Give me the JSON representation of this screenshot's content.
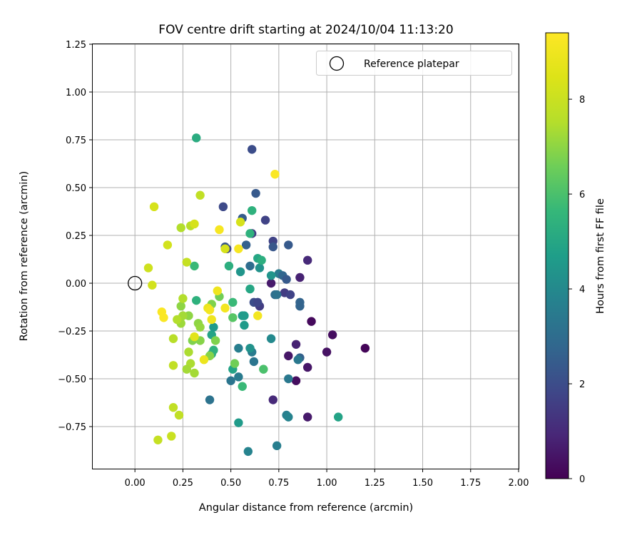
{
  "chart_data": {
    "type": "scatter",
    "title": "FOV centre drift starting at 2024/10/04 11:13:20",
    "xlabel": "Angular distance from reference (arcmin)",
    "ylabel": "Rotation from reference (arcmin)",
    "xlim": [
      -0.22,
      2.0
    ],
    "ylim": [
      -0.97,
      1.25
    ],
    "xticks": [
      "0.00",
      "0.25",
      "0.50",
      "0.75",
      "1.00",
      "1.25",
      "1.50",
      "1.75",
      "2.00"
    ],
    "yticks": [
      "−0.75",
      "−0.50",
      "−0.25",
      "0.00",
      "0.25",
      "0.50",
      "0.75",
      "1.00",
      "1.25"
    ],
    "xtick_values": [
      0,
      0.25,
      0.5,
      0.75,
      1.0,
      1.25,
      1.5,
      1.75,
      2.0
    ],
    "ytick_values": [
      -0.75,
      -0.5,
      -0.25,
      0,
      0.25,
      0.5,
      0.75,
      1.0,
      1.25
    ],
    "grid": true,
    "legend": {
      "position": "top-right",
      "entries": [
        "Reference platepar"
      ]
    },
    "reference_point": {
      "x": 0.0,
      "y": 0.0
    },
    "colorbar": {
      "label": "Hours from first FF file",
      "colormap": "viridis",
      "range": [
        0,
        9.4
      ],
      "ticks": [
        "0",
        "2",
        "4",
        "6",
        "8"
      ],
      "tick_values": [
        0,
        2,
        4,
        6,
        8
      ]
    },
    "points": [
      {
        "x": 1.2,
        "y": -0.34,
        "c": 0.1
      },
      {
        "x": 1.03,
        "y": -0.27,
        "c": 0.3
      },
      {
        "x": 1.0,
        "y": -0.36,
        "c": 0.4
      },
      {
        "x": 0.92,
        "y": -0.2,
        "c": 0.2
      },
      {
        "x": 0.9,
        "y": -0.44,
        "c": 0.5
      },
      {
        "x": 0.9,
        "y": -0.7,
        "c": 0.6
      },
      {
        "x": 0.84,
        "y": -0.51,
        "c": 0.3
      },
      {
        "x": 0.8,
        "y": -0.38,
        "c": 0.5
      },
      {
        "x": 0.86,
        "y": 0.03,
        "c": 0.8
      },
      {
        "x": 0.9,
        "y": 0.12,
        "c": 1.0
      },
      {
        "x": 0.71,
        "y": 0.0,
        "c": 0.6
      },
      {
        "x": 0.72,
        "y": -0.61,
        "c": 1.0
      },
      {
        "x": 0.84,
        "y": -0.32,
        "c": 0.8
      },
      {
        "x": 0.8,
        "y": 0.2,
        "c": 2.4
      },
      {
        "x": 0.61,
        "y": 0.7,
        "c": 2.0
      },
      {
        "x": 0.63,
        "y": 0.47,
        "c": 2.4
      },
      {
        "x": 0.46,
        "y": 0.4,
        "c": 1.9
      },
      {
        "x": 0.56,
        "y": 0.34,
        "c": 2.5
      },
      {
        "x": 0.68,
        "y": 0.33,
        "c": 1.7
      },
      {
        "x": 0.61,
        "y": 0.26,
        "c": 1.5
      },
      {
        "x": 0.72,
        "y": 0.22,
        "c": 1.7
      },
      {
        "x": 0.72,
        "y": 0.19,
        "c": 2.3
      },
      {
        "x": 0.58,
        "y": 0.2,
        "c": 2.6
      },
      {
        "x": 0.48,
        "y": 0.18,
        "c": 1.8
      },
      {
        "x": 0.47,
        "y": 0.19,
        "c": 2.3
      },
      {
        "x": 0.6,
        "y": 0.09,
        "c": 3.0
      },
      {
        "x": 0.75,
        "y": 0.05,
        "c": 3.5
      },
      {
        "x": 0.77,
        "y": 0.04,
        "c": 2.8
      },
      {
        "x": 0.79,
        "y": 0.02,
        "c": 2.4
      },
      {
        "x": 0.78,
        "y": -0.05,
        "c": 1.5
      },
      {
        "x": 0.81,
        "y": -0.06,
        "c": 1.7
      },
      {
        "x": 0.86,
        "y": -0.1,
        "c": 2.7
      },
      {
        "x": 0.86,
        "y": -0.12,
        "c": 2.7
      },
      {
        "x": 0.73,
        "y": -0.06,
        "c": 3.0
      },
      {
        "x": 0.74,
        "y": -0.06,
        "c": 3.2
      },
      {
        "x": 0.62,
        "y": -0.1,
        "c": 2.0
      },
      {
        "x": 0.65,
        "y": -0.12,
        "c": 1.5
      },
      {
        "x": 0.64,
        "y": -0.1,
        "c": 1.8
      },
      {
        "x": 0.86,
        "y": -0.39,
        "c": 2.6
      },
      {
        "x": 0.85,
        "y": -0.4,
        "c": 3.4
      },
      {
        "x": 0.8,
        "y": -0.5,
        "c": 3.4
      },
      {
        "x": 0.79,
        "y": -0.69,
        "c": 3.6
      },
      {
        "x": 0.8,
        "y": -0.7,
        "c": 3.8
      },
      {
        "x": 0.74,
        "y": -0.85,
        "c": 3.6
      },
      {
        "x": 0.59,
        "y": -0.88,
        "c": 3.8
      },
      {
        "x": 0.71,
        "y": -0.29,
        "c": 4.0
      },
      {
        "x": 0.61,
        "y": -0.36,
        "c": 3.5
      },
      {
        "x": 0.62,
        "y": -0.41,
        "c": 3.3
      },
      {
        "x": 0.6,
        "y": -0.34,
        "c": 4.3
      },
      {
        "x": 0.54,
        "y": -0.34,
        "c": 3.6
      },
      {
        "x": 0.54,
        "y": -0.49,
        "c": 3.5
      },
      {
        "x": 0.5,
        "y": -0.51,
        "c": 3.3
      },
      {
        "x": 0.39,
        "y": -0.61,
        "c": 3.2
      },
      {
        "x": 0.54,
        "y": -0.73,
        "c": 4.6
      },
      {
        "x": 1.06,
        "y": -0.7,
        "c": 4.9
      },
      {
        "x": 0.51,
        "y": -0.45,
        "c": 4.9
      },
      {
        "x": 0.56,
        "y": -0.17,
        "c": 4.6
      },
      {
        "x": 0.57,
        "y": -0.22,
        "c": 4.6
      },
      {
        "x": 0.57,
        "y": -0.17,
        "c": 4.6
      },
      {
        "x": 0.6,
        "y": -0.03,
        "c": 5.0
      },
      {
        "x": 0.65,
        "y": 0.08,
        "c": 4.3
      },
      {
        "x": 0.55,
        "y": 0.06,
        "c": 4.4
      },
      {
        "x": 0.71,
        "y": 0.04,
        "c": 4.4
      },
      {
        "x": 0.64,
        "y": 0.13,
        "c": 5.0
      },
      {
        "x": 0.66,
        "y": 0.12,
        "c": 5.3
      },
      {
        "x": 0.49,
        "y": 0.09,
        "c": 5.3
      },
      {
        "x": 0.61,
        "y": 0.38,
        "c": 5.4
      },
      {
        "x": 0.6,
        "y": 0.26,
        "c": 5.4
      },
      {
        "x": 0.32,
        "y": 0.76,
        "c": 5.2
      },
      {
        "x": 0.4,
        "y": -0.27,
        "c": 4.9
      },
      {
        "x": 0.41,
        "y": -0.23,
        "c": 4.6
      },
      {
        "x": 0.4,
        "y": -0.37,
        "c": 5.2
      },
      {
        "x": 0.41,
        "y": -0.35,
        "c": 5.4
      },
      {
        "x": 0.32,
        "y": -0.09,
        "c": 5.4
      },
      {
        "x": 0.31,
        "y": 0.09,
        "c": 5.7
      },
      {
        "x": 0.51,
        "y": -0.1,
        "c": 5.7
      },
      {
        "x": 0.51,
        "y": -0.18,
        "c": 6.2
      },
      {
        "x": 0.56,
        "y": -0.54,
        "c": 5.7
      },
      {
        "x": 0.67,
        "y": -0.45,
        "c": 6.0
      },
      {
        "x": 0.52,
        "y": -0.42,
        "c": 6.6
      },
      {
        "x": 0.44,
        "y": -0.07,
        "c": 6.6
      },
      {
        "x": 0.42,
        "y": -0.3,
        "c": 6.8
      },
      {
        "x": 0.39,
        "y": -0.38,
        "c": 6.9
      },
      {
        "x": 0.34,
        "y": -0.3,
        "c": 6.9
      },
      {
        "x": 0.3,
        "y": -0.3,
        "c": 6.8
      },
      {
        "x": 0.33,
        "y": -0.21,
        "c": 7.0
      },
      {
        "x": 0.34,
        "y": -0.23,
        "c": 7.1
      },
      {
        "x": 0.4,
        "y": -0.11,
        "c": 6.8
      },
      {
        "x": 0.28,
        "y": -0.17,
        "c": 7.0
      },
      {
        "x": 0.28,
        "y": -0.36,
        "c": 7.4
      },
      {
        "x": 0.29,
        "y": -0.42,
        "c": 7.4
      },
      {
        "x": 0.27,
        "y": -0.45,
        "c": 7.3
      },
      {
        "x": 0.31,
        "y": -0.47,
        "c": 7.3
      },
      {
        "x": 0.24,
        "y": -0.12,
        "c": 7.0
      },
      {
        "x": 0.25,
        "y": -0.08,
        "c": 7.5
      },
      {
        "x": 0.24,
        "y": -0.21,
        "c": 7.2
      },
      {
        "x": 0.25,
        "y": -0.17,
        "c": 7.3
      },
      {
        "x": 0.22,
        "y": -0.19,
        "c": 7.5
      },
      {
        "x": 0.2,
        "y": -0.29,
        "c": 7.6
      },
      {
        "x": 0.2,
        "y": -0.43,
        "c": 7.8
      },
      {
        "x": 0.2,
        "y": -0.65,
        "c": 7.8
      },
      {
        "x": 0.23,
        "y": -0.69,
        "c": 7.8
      },
      {
        "x": 0.19,
        "y": -0.8,
        "c": 8.0
      },
      {
        "x": 0.12,
        "y": -0.82,
        "c": 7.9
      },
      {
        "x": 0.09,
        "y": -0.01,
        "c": 8.2
      },
      {
        "x": 0.07,
        "y": 0.08,
        "c": 8.1
      },
      {
        "x": 0.17,
        "y": 0.2,
        "c": 8.2
      },
      {
        "x": 0.27,
        "y": 0.11,
        "c": 7.9
      },
      {
        "x": 0.1,
        "y": 0.4,
        "c": 8.3
      },
      {
        "x": 0.24,
        "y": 0.29,
        "c": 7.5
      },
      {
        "x": 0.29,
        "y": 0.3,
        "c": 7.6
      },
      {
        "x": 0.31,
        "y": 0.31,
        "c": 8.3
      },
      {
        "x": 0.34,
        "y": 0.46,
        "c": 7.8
      },
      {
        "x": 0.47,
        "y": 0.18,
        "c": 8.3
      },
      {
        "x": 0.55,
        "y": 0.32,
        "c": 8.3
      },
      {
        "x": 0.31,
        "y": -0.28,
        "c": 8.6
      },
      {
        "x": 0.36,
        "y": -0.4,
        "c": 8.9
      },
      {
        "x": 0.38,
        "y": -0.13,
        "c": 8.9
      },
      {
        "x": 0.43,
        "y": -0.04,
        "c": 9.0
      },
      {
        "x": 0.39,
        "y": -0.14,
        "c": 9.1
      },
      {
        "x": 0.4,
        "y": -0.19,
        "c": 9.0
      },
      {
        "x": 0.47,
        "y": -0.13,
        "c": 9.1
      },
      {
        "x": 0.64,
        "y": -0.17,
        "c": 9.1
      },
      {
        "x": 0.54,
        "y": 0.18,
        "c": 9.2
      },
      {
        "x": 0.44,
        "y": 0.28,
        "c": 9.2
      },
      {
        "x": 0.73,
        "y": 0.57,
        "c": 9.3
      },
      {
        "x": 0.14,
        "y": -0.15,
        "c": 9.3
      },
      {
        "x": 0.15,
        "y": -0.18,
        "c": 9.3
      }
    ]
  }
}
